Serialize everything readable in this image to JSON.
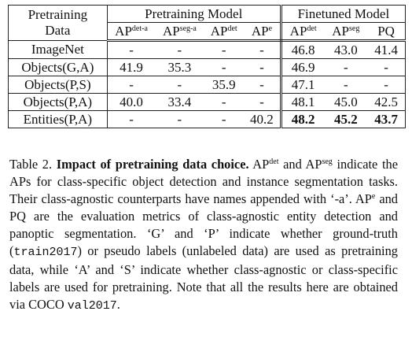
{
  "table": {
    "header": {
      "first_col": [
        "Pretraining",
        "Data"
      ],
      "groups": [
        "Pretraining Model",
        "Finetuned Model"
      ],
      "columns": [
        {
          "base": "AP",
          "sup": "det-a"
        },
        {
          "base": "AP",
          "sup": "seg-a"
        },
        {
          "base": "AP",
          "sup": "det"
        },
        {
          "base": "AP",
          "sup": "e"
        },
        {
          "base": "AP",
          "sup": "det"
        },
        {
          "base": "AP",
          "sup": "seg"
        },
        {
          "base": "PQ"
        }
      ]
    },
    "rows": [
      [
        "ImageNet",
        "-",
        "-",
        "-",
        "-",
        "46.8",
        "43.0",
        "41.4"
      ],
      [
        "Objects(G,A)",
        "41.9",
        "35.3",
        "-",
        "-",
        "46.9",
        "-",
        "-"
      ],
      [
        "Objects(P,S)",
        "-",
        "-",
        "35.9",
        "-",
        "47.1",
        "-",
        "-"
      ],
      [
        "Objects(P,A)",
        "40.0",
        "33.4",
        "-",
        "-",
        "48.1",
        "45.0",
        "42.5"
      ],
      [
        "Entities(P,A)",
        "-",
        "-",
        "-",
        "40.2",
        "48.2",
        "45.2",
        "43.7"
      ]
    ]
  },
  "caption": [
    {
      "text": "Table 2. "
    },
    {
      "text": "Impact of pretraining data choice.",
      "style": "bold"
    },
    {
      "text": " AP"
    },
    {
      "text": "det",
      "style": "sup"
    },
    {
      "text": " and AP"
    },
    {
      "text": "seg",
      "style": "sup"
    },
    {
      "text": " indicate the APs for class-specific object detection and instance segmentation tasks. Their class-agnostic counterparts have names appended with ‘-a’. AP"
    },
    {
      "text": "e",
      "style": "sup"
    },
    {
      "text": " and PQ are the evaluation metrics of class-agnostic entity detection and panoptic segmentation. ‘G’ and ‘P’ indicate whether ground-truth ("
    },
    {
      "text": "train2017",
      "style": "mono"
    },
    {
      "text": ") or pseudo labels (unlabeled data) are used as pretraining data, while ‘A’ and ‘S’ indicate whether class-agnostic or class-specific labels are used for pretraining. Note that all the results here are obtained via COCO "
    },
    {
      "text": "val2017",
      "style": "mono"
    },
    {
      "text": "."
    }
  ]
}
